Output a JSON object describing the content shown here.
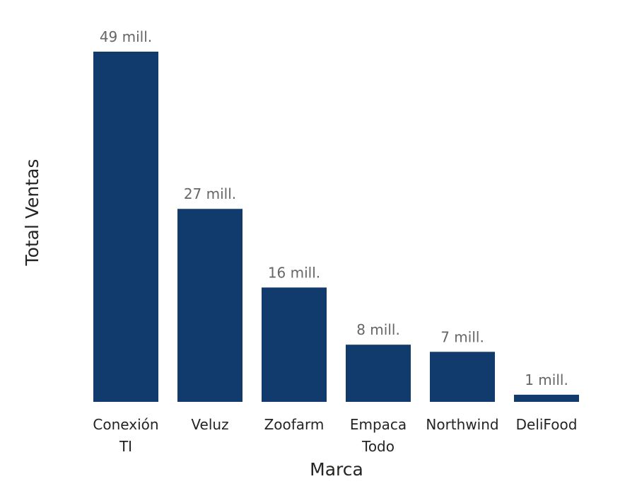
{
  "chart_data": {
    "type": "bar",
    "title": "",
    "xlabel": "Marca",
    "ylabel": "Total Ventas",
    "categories": [
      "Conexión TI",
      "Veluz",
      "Zoofarm",
      "Empaca Todo",
      "Northwind",
      "DeliFood"
    ],
    "category_lines": [
      [
        "Conexión",
        "TI"
      ],
      [
        "Veluz"
      ],
      [
        "Zoofarm"
      ],
      [
        "Empaca",
        "Todo"
      ],
      [
        "Northwind"
      ],
      [
        "DeliFood"
      ]
    ],
    "values": [
      49,
      27,
      16,
      8,
      7,
      1
    ],
    "value_labels": [
      "49 mill.",
      "27 mill.",
      "16 mill.",
      "8 mill.",
      "7 mill.",
      "1 mill."
    ],
    "unit": "mill.",
    "ylim": [
      0,
      49
    ],
    "grid": false,
    "legend": "none",
    "bar_color": "#123B6D",
    "data_label_color": "#666666",
    "text_color": "#252423"
  }
}
